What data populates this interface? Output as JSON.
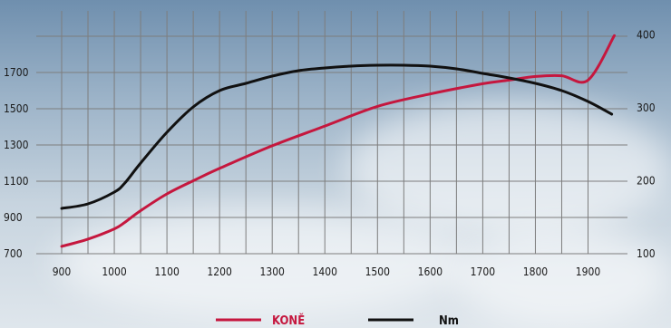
{
  "chart_data": {
    "type": "line",
    "x_ticks": [
      900,
      1000,
      1100,
      1200,
      1300,
      1400,
      1500,
      1600,
      1700,
      1800,
      1900
    ],
    "y_left_ticks": [
      700,
      900,
      1100,
      1300,
      1500,
      1700
    ],
    "y_right_ticks": [
      100,
      200,
      300,
      400
    ],
    "xlim": [
      870,
      1950
    ],
    "ylim_left": [
      620,
      1890
    ],
    "ylim_right": [
      100,
      415
    ],
    "grid": true,
    "legend_position": "bottom-center",
    "series": [
      {
        "name": "KONĚ",
        "axis": "right",
        "color": "#c5173e",
        "x": [
          900,
          950,
          1000,
          1020,
          1050,
          1100,
          1150,
          1200,
          1300,
          1400,
          1500,
          1600,
          1700,
          1750,
          1800,
          1850,
          1900,
          1950
        ],
        "y": [
          110,
          120,
          134,
          143,
          159,
          182,
          200,
          217,
          248,
          275,
          302,
          319,
          333,
          338,
          343,
          344,
          338,
          399
        ]
      },
      {
        "name": "Nm",
        "axis": "left",
        "color": "#111111",
        "x": [
          900,
          950,
          1000,
          1020,
          1050,
          1100,
          1150,
          1200,
          1250,
          1300,
          1350,
          1400,
          1450,
          1500,
          1550,
          1600,
          1650,
          1700,
          1750,
          1800,
          1850,
          1900,
          1945
        ],
        "y": [
          950,
          975,
          1040,
          1090,
          1200,
          1370,
          1510,
          1600,
          1640,
          1680,
          1710,
          1725,
          1735,
          1740,
          1740,
          1735,
          1720,
          1695,
          1670,
          1640,
          1600,
          1540,
          1470
        ]
      }
    ]
  }
}
